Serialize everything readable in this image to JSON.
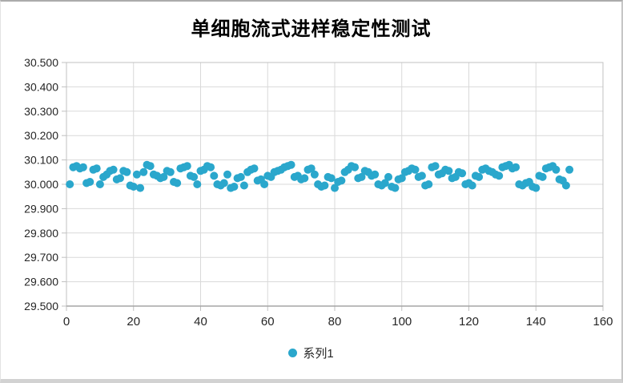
{
  "chart_data": {
    "type": "scatter",
    "title": "单细胞流式进样稳定性测试",
    "legend_entries": [
      "系列1"
    ],
    "legend_position": "bottom-center",
    "grid": true,
    "xlabel": "",
    "ylabel": "",
    "xlim": [
      0,
      160
    ],
    "ylim": [
      29.5,
      30.5
    ],
    "x_ticks": [
      0,
      20,
      40,
      60,
      80,
      100,
      120,
      140,
      160
    ],
    "y_ticks": [
      30.5,
      30.4,
      30.3,
      30.2,
      30.1,
      30.0,
      29.9,
      29.8,
      29.7,
      29.6,
      29.5
    ],
    "y_tick_decimals": 3,
    "x_start": 1,
    "x_step": 1,
    "values": [
      30.0,
      30.07,
      30.075,
      30.065,
      30.07,
      30.005,
      30.01,
      30.06,
      30.065,
      30.0,
      30.03,
      30.04,
      30.055,
      30.06,
      30.02,
      30.025,
      30.055,
      30.05,
      29.995,
      29.99,
      30.04,
      29.985,
      30.05,
      30.08,
      30.075,
      30.04,
      30.035,
      30.025,
      30.03,
      30.055,
      30.05,
      30.01,
      30.005,
      30.065,
      30.07,
      30.075,
      30.035,
      30.03,
      30.0,
      30.055,
      30.06,
      30.075,
      30.07,
      30.035,
      30.0,
      29.995,
      30.005,
      30.04,
      29.985,
      29.99,
      30.025,
      30.03,
      29.995,
      30.05,
      30.06,
      30.065,
      30.015,
      30.02,
      30.0,
      30.035,
      30.03,
      30.05,
      30.055,
      30.06,
      30.07,
      30.075,
      30.08,
      30.03,
      30.035,
      30.02,
      30.025,
      30.06,
      30.065,
      30.04,
      30.0,
      29.99,
      29.995,
      30.03,
      30.025,
      29.985,
      30.01,
      30.015,
      30.05,
      30.06,
      30.075,
      30.07,
      30.025,
      30.03,
      30.055,
      30.05,
      30.035,
      30.04,
      30.0,
      29.995,
      30.005,
      30.03,
      29.99,
      29.985,
      30.02,
      30.025,
      30.05,
      30.055,
      30.065,
      30.06,
      30.03,
      30.035,
      29.995,
      30.0,
      30.07,
      30.075,
      30.04,
      30.045,
      30.06,
      30.055,
      30.025,
      30.03,
      30.05,
      30.045,
      30.0,
      30.005,
      29.995,
      30.035,
      30.03,
      30.06,
      30.065,
      30.055,
      30.05,
      30.04,
      30.035,
      30.07,
      30.075,
      30.08,
      30.065,
      30.07,
      30.0,
      29.995,
      30.005,
      30.01,
      29.99,
      29.985,
      30.035,
      30.03,
      30.065,
      30.07,
      30.075,
      30.06,
      30.02,
      30.015,
      29.995,
      30.06
    ],
    "colors": {
      "point": "#2AA7CC",
      "gridline": "#D9D9D9",
      "plot_border": "#C0C0C0",
      "axis_line": "#A6A6A6",
      "tick_text": "#262626",
      "title_text": "#000000"
    }
  }
}
